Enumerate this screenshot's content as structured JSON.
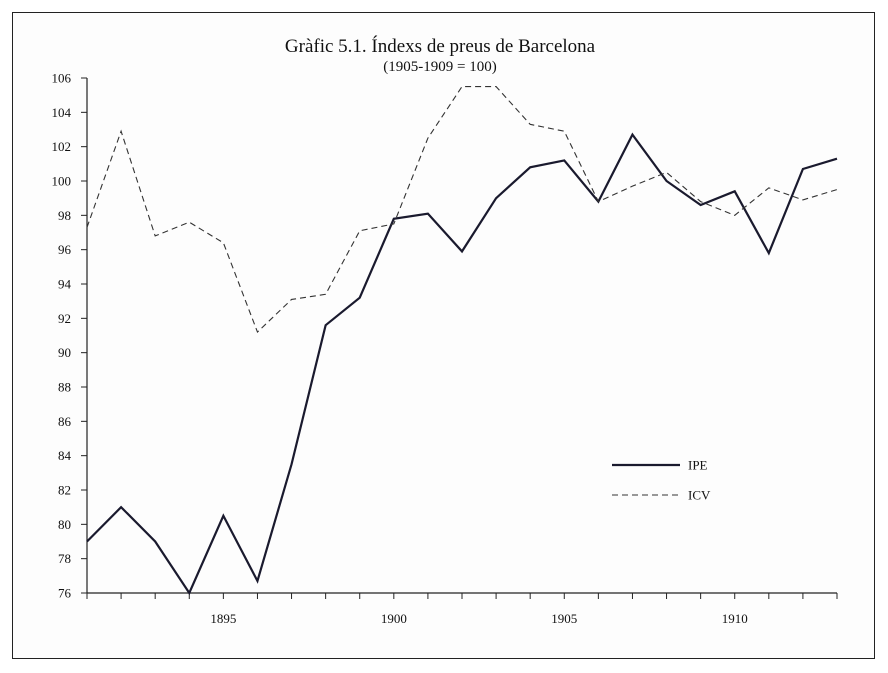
{
  "chart_data": {
    "type": "line",
    "title": "Gràfic 5.1. Índexs de preus de Barcelona",
    "subtitle": "(1905-1909 = 100)",
    "xlabel": "",
    "ylabel": "",
    "x": [
      1891,
      1892,
      1893,
      1894,
      1895,
      1896,
      1897,
      1898,
      1899,
      1900,
      1901,
      1902,
      1903,
      1904,
      1905,
      1906,
      1907,
      1908,
      1909,
      1910,
      1911,
      1912,
      1913
    ],
    "xlim": [
      1891,
      1913
    ],
    "x_ticks": [
      1895,
      1900,
      1905,
      1910
    ],
    "ylim": [
      76,
      106
    ],
    "y_ticks": [
      76,
      78,
      80,
      82,
      84,
      86,
      88,
      90,
      92,
      94,
      96,
      98,
      100,
      102,
      104,
      106
    ],
    "grid": false,
    "legend_position": "right",
    "series": [
      {
        "name": "IPE",
        "style": "solid",
        "values": [
          79.0,
          81.0,
          79.0,
          76.0,
          80.5,
          76.7,
          83.5,
          91.6,
          93.2,
          97.8,
          98.1,
          95.9,
          99.0,
          100.8,
          101.2,
          98.8,
          102.7,
          100.0,
          98.6,
          99.4,
          95.8,
          100.7,
          101.3
        ]
      },
      {
        "name": "ICV",
        "style": "dashed",
        "values": [
          97.3,
          102.9,
          96.8,
          97.6,
          96.4,
          91.2,
          93.1,
          93.4,
          97.1,
          97.5,
          102.5,
          105.5,
          105.5,
          103.3,
          102.9,
          98.8,
          99.7,
          100.5,
          98.8,
          98.0,
          99.6,
          98.9,
          99.5
        ]
      }
    ]
  },
  "style": {
    "ipe_color": "#1a1a2e",
    "icv_color": "#333333",
    "axis_color": "#222222"
  }
}
